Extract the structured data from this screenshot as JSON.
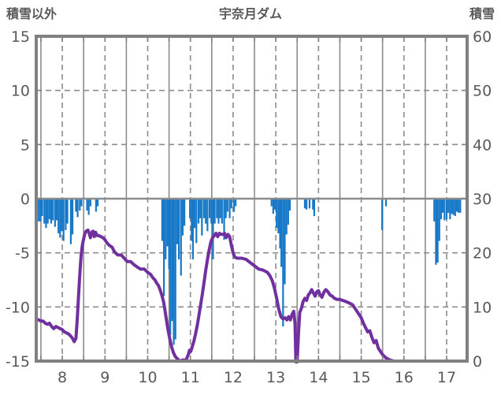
{
  "header": {
    "left_axis_title": "積雪以外",
    "chart_title": "宇奈月ダム",
    "right_axis_title": "積雪"
  },
  "chart_data": {
    "type": "composite",
    "title": "宇奈月ダム",
    "x_axis": {
      "min_day": 7.89,
      "max_day": 17.98,
      "day_labels": [
        "8",
        "9",
        "10",
        "11",
        "12",
        "13",
        "14",
        "15",
        "16",
        "17"
      ],
      "label_position": "noon_of_each_day",
      "solid_gridlines": "midnight_each_day",
      "dashed_gridlines": "noon_each_day"
    },
    "left_axis": {
      "title": "積雪以外",
      "min": -15,
      "max": 15,
      "ticks": [
        15,
        10,
        5,
        0,
        -5,
        -10,
        -15
      ]
    },
    "right_axis": {
      "title": "積雪",
      "min": 0,
      "max": 60,
      "ticks": [
        60,
        50,
        40,
        30,
        20,
        10,
        0
      ]
    },
    "grid": {
      "h_dashed": [
        10,
        5,
        -5,
        -10
      ],
      "h_solid_zero": 0
    },
    "colors": {
      "bar": "#1878C8",
      "line": "#7030A0",
      "border": "#808080",
      "gridline": "#8C8C8C",
      "text": "#595959",
      "background": "#FFFFFF"
    },
    "series": [
      {
        "name": "blue_bars",
        "type": "bar",
        "axis": "left",
        "points": [
          [
            7.91,
            -1.1
          ],
          [
            7.95,
            -2.1
          ],
          [
            7.99,
            -2.1
          ],
          [
            8.03,
            -1.6
          ],
          [
            8.08,
            -2.3
          ],
          [
            8.12,
            -2.7
          ],
          [
            8.16,
            -2.3
          ],
          [
            8.2,
            -1.9
          ],
          [
            8.24,
            -2.3
          ],
          [
            8.28,
            -2.0
          ],
          [
            8.33,
            -2.6
          ],
          [
            8.37,
            -2.0
          ],
          [
            8.41,
            -3.2
          ],
          [
            8.45,
            -3.6
          ],
          [
            8.49,
            -3.0
          ],
          [
            8.53,
            -3.9
          ],
          [
            8.58,
            -2.9
          ],
          [
            8.62,
            -2.3
          ],
          [
            8.7,
            -4.2
          ],
          [
            8.74,
            -3.3
          ],
          [
            8.82,
            -1.2
          ],
          [
            8.86,
            -1.7
          ],
          [
            8.91,
            -1.1
          ],
          [
            8.95,
            -0.7
          ],
          [
            9.08,
            -1.1
          ],
          [
            9.12,
            -1.5
          ],
          [
            9.16,
            -0.7
          ],
          [
            9.29,
            -1.2
          ],
          [
            9.33,
            -0.7
          ],
          [
            10.84,
            -3.9
          ],
          [
            10.88,
            -9.0
          ],
          [
            10.92,
            -5.6
          ],
          [
            10.96,
            -4.4
          ],
          [
            11.0,
            -6.5
          ],
          [
            11.03,
            -12.6
          ],
          [
            11.07,
            -11.3
          ],
          [
            11.11,
            -13.5
          ],
          [
            11.15,
            -13.0
          ],
          [
            11.19,
            -4.2
          ],
          [
            11.23,
            -5.6
          ],
          [
            11.28,
            -7.1
          ],
          [
            11.32,
            -3.4
          ],
          [
            11.36,
            -2.5
          ],
          [
            11.49,
            -1.8
          ],
          [
            11.53,
            -3.9
          ],
          [
            11.56,
            -5.6
          ],
          [
            11.6,
            -2.7
          ],
          [
            11.64,
            -4.1
          ],
          [
            11.69,
            -2.3
          ],
          [
            11.73,
            -1.8
          ],
          [
            11.77,
            -3.4
          ],
          [
            11.82,
            -1.8
          ],
          [
            11.86,
            -2.3
          ],
          [
            11.9,
            -3.0
          ],
          [
            11.95,
            -1.8
          ],
          [
            11.99,
            -2.3
          ],
          [
            12.03,
            -5.6
          ],
          [
            12.07,
            -2.3
          ],
          [
            12.12,
            -1.8
          ],
          [
            12.16,
            -2.3
          ],
          [
            12.2,
            -1.8
          ],
          [
            12.24,
            -2.3
          ],
          [
            12.29,
            -3.8
          ],
          [
            12.33,
            -1.8
          ],
          [
            12.37,
            -1.2
          ],
          [
            12.42,
            -1.8
          ],
          [
            12.46,
            -0.9
          ],
          [
            12.52,
            -1.2
          ],
          [
            12.56,
            -0.7
          ],
          [
            13.4,
            -0.7
          ],
          [
            13.44,
            -1.4
          ],
          [
            13.48,
            -1.0
          ],
          [
            13.52,
            -2.7
          ],
          [
            13.56,
            -3.2
          ],
          [
            13.6,
            -4.6
          ],
          [
            13.63,
            -6.3
          ],
          [
            13.67,
            -11.8
          ],
          [
            13.71,
            -7.9
          ],
          [
            13.75,
            -3.3
          ],
          [
            13.79,
            -2.4
          ],
          [
            13.83,
            -1.1
          ],
          [
            14.18,
            -0.9
          ],
          [
            14.22,
            -1.0
          ],
          [
            14.29,
            -0.9
          ],
          [
            14.37,
            -1.0
          ],
          [
            14.4,
            -1.6
          ],
          [
            15.99,
            -2.9
          ],
          [
            16.08,
            -0.7
          ],
          [
            17.21,
            -2.1
          ],
          [
            17.25,
            -6.1
          ],
          [
            17.29,
            -5.9
          ],
          [
            17.33,
            -3.9
          ],
          [
            17.37,
            -1.9
          ],
          [
            17.41,
            -1.3
          ],
          [
            17.45,
            -2.0
          ],
          [
            17.5,
            -1.9
          ],
          [
            17.54,
            -1.3
          ],
          [
            17.58,
            -1.9
          ],
          [
            17.62,
            -1.4
          ],
          [
            17.66,
            -1.5
          ],
          [
            17.7,
            -1.6
          ],
          [
            17.74,
            -1.2
          ],
          [
            17.78,
            -1.3
          ],
          [
            17.82,
            -1.3
          ]
        ]
      },
      {
        "name": "purple_line",
        "type": "line",
        "axis": "left",
        "points": [
          [
            7.89,
            -11.1
          ],
          [
            7.95,
            -11.2
          ],
          [
            8.0,
            -11.3
          ],
          [
            8.05,
            -11.3
          ],
          [
            8.1,
            -11.5
          ],
          [
            8.15,
            -11.6
          ],
          [
            8.2,
            -11.5
          ],
          [
            8.25,
            -11.8
          ],
          [
            8.3,
            -12.0
          ],
          [
            8.35,
            -11.8
          ],
          [
            8.4,
            -11.9
          ],
          [
            8.45,
            -12.0
          ],
          [
            8.5,
            -12.1
          ],
          [
            8.55,
            -12.3
          ],
          [
            8.6,
            -12.4
          ],
          [
            8.65,
            -12.5
          ],
          [
            8.7,
            -12.7
          ],
          [
            8.74,
            -12.9
          ],
          [
            8.78,
            -13.2
          ],
          [
            8.82,
            -12.9
          ],
          [
            8.85,
            -11.2
          ],
          [
            8.88,
            -9.0
          ],
          [
            8.91,
            -7.0
          ],
          [
            8.94,
            -5.3
          ],
          [
            8.97,
            -4.3
          ],
          [
            9.0,
            -3.7
          ],
          [
            9.03,
            -3.2
          ],
          [
            9.06,
            -3.0
          ],
          [
            9.1,
            -2.9
          ],
          [
            9.13,
            -3.2
          ],
          [
            9.16,
            -3.6
          ],
          [
            9.19,
            -3.1
          ],
          [
            9.22,
            -3.0
          ],
          [
            9.25,
            -3.5
          ],
          [
            9.28,
            -3.1
          ],
          [
            9.31,
            -3.4
          ],
          [
            9.35,
            -3.4
          ],
          [
            9.4,
            -3.5
          ],
          [
            9.45,
            -3.6
          ],
          [
            9.5,
            -3.8
          ],
          [
            9.55,
            -4.1
          ],
          [
            9.6,
            -4.3
          ],
          [
            9.67,
            -4.5
          ],
          [
            9.72,
            -4.9
          ],
          [
            9.8,
            -5.2
          ],
          [
            9.88,
            -5.2
          ],
          [
            9.95,
            -5.5
          ],
          [
            10.02,
            -5.8
          ],
          [
            10.1,
            -5.8
          ],
          [
            10.18,
            -6.1
          ],
          [
            10.25,
            -6.3
          ],
          [
            10.33,
            -6.5
          ],
          [
            10.42,
            -6.5
          ],
          [
            10.5,
            -6.8
          ],
          [
            10.57,
            -7.0
          ],
          [
            10.62,
            -7.3
          ],
          [
            10.67,
            -7.5
          ],
          [
            10.71,
            -7.8
          ],
          [
            10.75,
            -8.0
          ],
          [
            10.79,
            -8.4
          ],
          [
            10.83,
            -8.9
          ],
          [
            10.87,
            -9.5
          ],
          [
            10.9,
            -10.2
          ],
          [
            10.94,
            -11.2
          ],
          [
            10.98,
            -12.2
          ],
          [
            11.02,
            -13.0
          ],
          [
            11.06,
            -13.7
          ],
          [
            11.1,
            -14.2
          ],
          [
            11.15,
            -14.6
          ],
          [
            11.2,
            -14.8
          ],
          [
            11.25,
            -15.0
          ],
          [
            11.32,
            -14.9
          ],
          [
            11.4,
            -14.9
          ],
          [
            11.45,
            -14.4
          ],
          [
            11.48,
            -14.0
          ],
          [
            11.51,
            -14.1
          ],
          [
            11.54,
            -13.7
          ],
          [
            11.58,
            -13.2
          ],
          [
            11.62,
            -12.5
          ],
          [
            11.66,
            -11.7
          ],
          [
            11.7,
            -10.8
          ],
          [
            11.74,
            -9.8
          ],
          [
            11.78,
            -8.8
          ],
          [
            11.82,
            -7.7
          ],
          [
            11.86,
            -6.6
          ],
          [
            11.9,
            -5.6
          ],
          [
            11.94,
            -4.7
          ],
          [
            11.98,
            -4.0
          ],
          [
            12.02,
            -3.6
          ],
          [
            12.06,
            -3.4
          ],
          [
            12.1,
            -3.2
          ],
          [
            12.14,
            -3.5
          ],
          [
            12.18,
            -3.2
          ],
          [
            12.22,
            -3.3
          ],
          [
            12.26,
            -3.3
          ],
          [
            12.3,
            -3.2
          ],
          [
            12.34,
            -3.6
          ],
          [
            12.38,
            -3.3
          ],
          [
            12.42,
            -3.5
          ],
          [
            12.46,
            -4.3
          ],
          [
            12.5,
            -5.0
          ],
          [
            12.54,
            -5.4
          ],
          [
            12.6,
            -5.5
          ],
          [
            12.7,
            -5.5
          ],
          [
            12.8,
            -5.6
          ],
          [
            12.9,
            -5.9
          ],
          [
            13.0,
            -6.2
          ],
          [
            13.1,
            -6.5
          ],
          [
            13.2,
            -6.6
          ],
          [
            13.3,
            -6.8
          ],
          [
            13.36,
            -7.1
          ],
          [
            13.42,
            -7.6
          ],
          [
            13.47,
            -8.3
          ],
          [
            13.52,
            -9.2
          ],
          [
            13.57,
            -10.2
          ],
          [
            13.62,
            -10.9
          ],
          [
            13.67,
            -11.1
          ],
          [
            13.72,
            -11.0
          ],
          [
            13.76,
            -11.2
          ],
          [
            13.8,
            -10.9
          ],
          [
            13.84,
            -11.2
          ],
          [
            13.88,
            -10.7
          ],
          [
            13.92,
            -10.4
          ],
          [
            13.95,
            -11.5
          ],
          [
            13.97,
            -15.1
          ],
          [
            14.0,
            -15.1
          ],
          [
            14.03,
            -12.5
          ],
          [
            14.06,
            -10.5
          ],
          [
            14.1,
            -10.1
          ],
          [
            14.14,
            -9.5
          ],
          [
            14.18,
            -9.2
          ],
          [
            14.22,
            -9.4
          ],
          [
            14.26,
            -8.9
          ],
          [
            14.3,
            -8.7
          ],
          [
            14.34,
            -8.4
          ],
          [
            14.38,
            -8.7
          ],
          [
            14.42,
            -9.0
          ],
          [
            14.46,
            -8.6
          ],
          [
            14.5,
            -8.5
          ],
          [
            14.54,
            -8.9
          ],
          [
            14.58,
            -9.1
          ],
          [
            14.63,
            -8.6
          ],
          [
            14.67,
            -8.4
          ],
          [
            14.72,
            -8.6
          ],
          [
            14.77,
            -8.9
          ],
          [
            14.82,
            -9.0
          ],
          [
            14.87,
            -9.2
          ],
          [
            14.93,
            -9.3
          ],
          [
            15.0,
            -9.3
          ],
          [
            15.07,
            -9.4
          ],
          [
            15.14,
            -9.5
          ],
          [
            15.2,
            -9.6
          ],
          [
            15.3,
            -9.8
          ],
          [
            15.4,
            -10.4
          ],
          [
            15.5,
            -11.0
          ],
          [
            15.55,
            -11.5
          ],
          [
            15.6,
            -11.9
          ],
          [
            15.65,
            -12.3
          ],
          [
            15.7,
            -12.2
          ],
          [
            15.75,
            -12.8
          ],
          [
            15.8,
            -13.3
          ],
          [
            15.85,
            -13.1
          ],
          [
            15.9,
            -13.8
          ],
          [
            15.95,
            -14.1
          ],
          [
            16.0,
            -14.4
          ],
          [
            16.08,
            -14.7
          ],
          [
            16.17,
            -14.9
          ],
          [
            16.27,
            -15.0
          ],
          [
            16.6,
            -15.0
          ],
          [
            17.0,
            -15.0
          ],
          [
            17.5,
            -15.0
          ],
          [
            17.98,
            -15.0
          ]
        ]
      }
    ]
  }
}
